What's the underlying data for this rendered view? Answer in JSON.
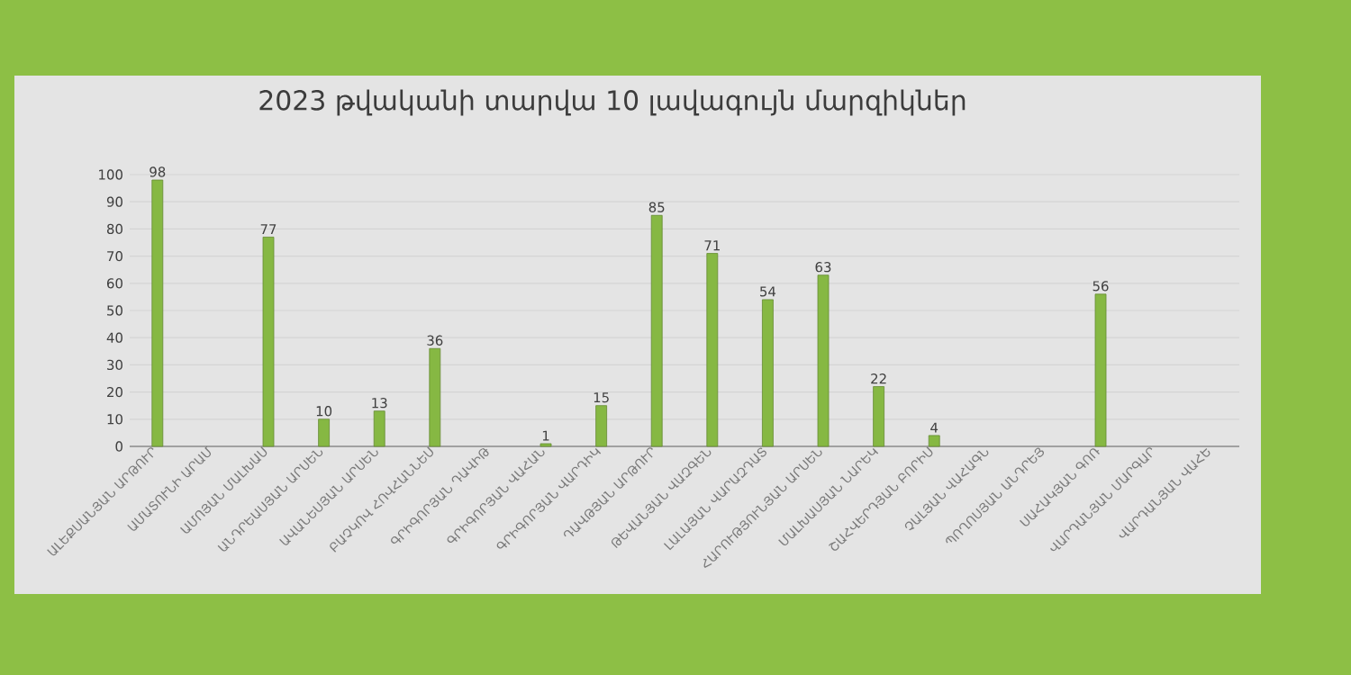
{
  "chart_data": {
    "type": "bar",
    "title": "2023 թվականի տարվա 10 լավագույն մարզիկներ",
    "categories": [
      "ԱԼԵՔՍԱՆՅԱՆ ԱՐԹՈՒՐ",
      "ԱՄԱՏՈՒՆԻ ԱՐԱՄ",
      "ԱՄՈՅԱՆ ՄԱԼԽԱՍ",
      "ԱՆԴՐԵԱՍՅԱՆ ԱՐՍԵՆ",
      "ԱՎԱՆԵՍՅԱՆ ԱՐՍԵՆ",
      "ԲԱՉԿՈՎ ՀՈՎՀԱՆՆԵՍ",
      "ԳՐԻԳՈՐՅԱՆ ԴԱՎԻԹ",
      "ԳՐԻԳՈՐՅԱՆ ՎԱՀԱՆ",
      "ԳՐԻԳՈՐՅԱՆ ՎԱՐԴԻԿ",
      "ԴԱՎԹՅԱՆ ԱՐԹՈՒՐ",
      "ԹԵՎԱՆՅԱՆ ՎԱԶԳԵՆ",
      "ԼԱԼԱՅԱՆ ՎԱՐԱԶԴԱՏ",
      "ՀԱՐՈՒԹՅՈՒՆՅԱՆ ԱՐՍԵՆ",
      "ՄԱԼԽԱՍՅԱՆ ՆԱՐԵԿ",
      "ՇԱՀՎԵՐԴՅԱՆ ԲՈՐԻՍ",
      "ՉԱԼՅԱՆ ՎԱՀԱԳՆ",
      "ՊՈՂՈՍՅԱՆ ԱՆԴՐԵՅ",
      "ՍԱՀԱԿՅԱՆ ԳՈՌ",
      "ՎԱՐԴԱՆՅԱՆ ՄԱՐԳԱՐ",
      "ՎԱՐԴԱՆՅԱՆ ՎԱՀԵ"
    ],
    "values": [
      98,
      null,
      77,
      10,
      13,
      36,
      null,
      1,
      15,
      85,
      71,
      54,
      63,
      22,
      4,
      null,
      null,
      56,
      null,
      null
    ],
    "color": "#86b843",
    "ylim": [
      0,
      100
    ],
    "yticks": [
      0,
      10,
      20,
      30,
      40,
      50,
      60,
      70,
      80,
      90,
      100
    ],
    "grid": "y",
    "data_labels": true
  }
}
